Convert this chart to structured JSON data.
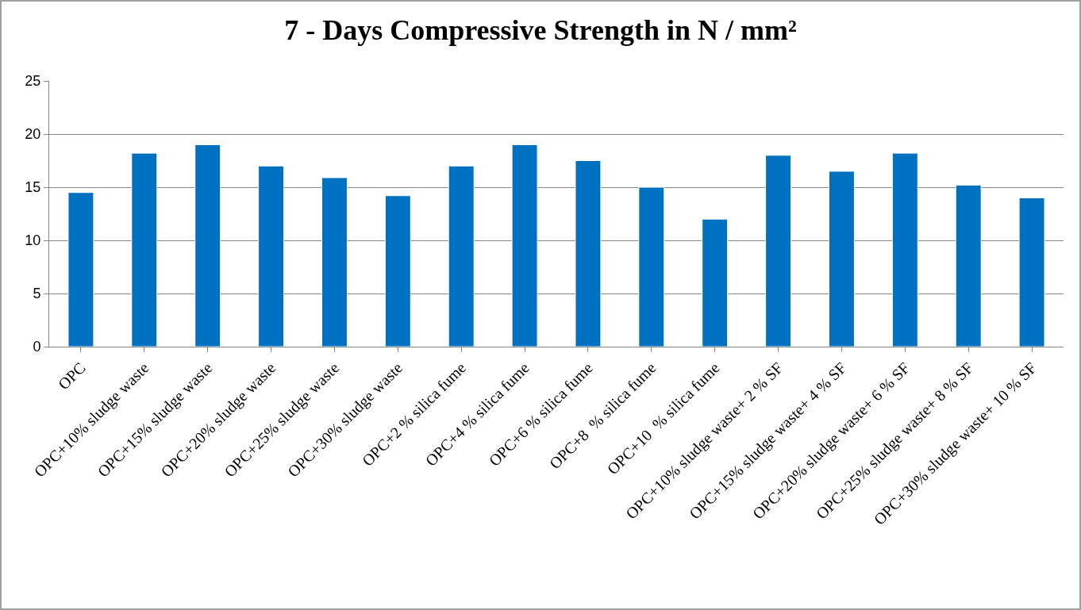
{
  "chart_data": {
    "type": "bar",
    "title": "7 - Days Compressive Strength in N / mm²",
    "categories": [
      "OPC",
      "OPC+10% sludge waste",
      "OPC+15% sludge waste",
      "OPC+20% sludge waste",
      "OPC+25% sludge waste",
      "OPC+30% sludge waste",
      "OPC+2 % silica fume",
      "OPC+4 % silica fume",
      "OPC+6 % silica fume",
      "OPC+8  % silica fume",
      "OPC+10  % silica fume",
      "OPC+10% sludge waste+ 2 % SF",
      "OPC+15% sludge waste+ 4 % SF",
      "OPC+20% sludge waste+ 6 % SF",
      "OPC+25% sludge waste+ 8 % SF",
      "OPC+30% sludge waste+ 10 % SF"
    ],
    "values": [
      14.5,
      18.2,
      19.0,
      17.0,
      15.9,
      14.2,
      17.0,
      19.0,
      17.5,
      15.0,
      12.0,
      18.0,
      16.5,
      18.2,
      15.2,
      14.0
    ],
    "color": "#0070c0",
    "ylim": [
      0,
      25
    ],
    "yticks": [
      0,
      5,
      10,
      15,
      20,
      25
    ],
    "grid": "y",
    "legend": false
  }
}
